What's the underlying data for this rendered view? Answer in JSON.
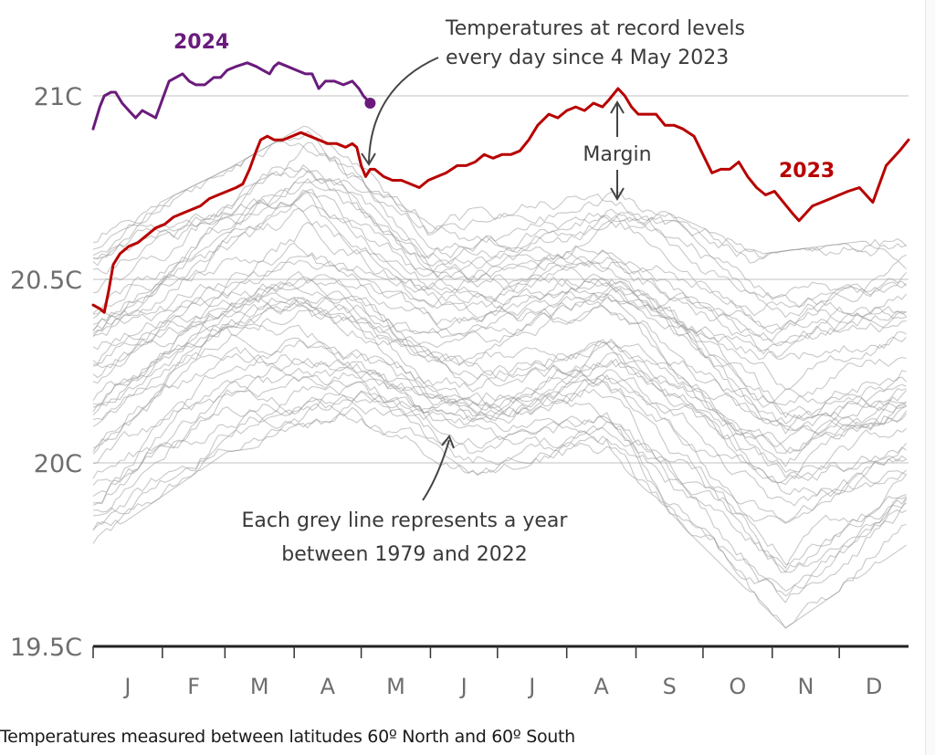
{
  "chart_data": {
    "type": "line",
    "title": "",
    "xlabel": "",
    "ylabel": "",
    "footnote": "Temperatures measured between latitudes 60º North and 60º South",
    "x_unit": "day of year",
    "xlim": [
      0,
      365
    ],
    "ylim": [
      19.5,
      21.2
    ],
    "y_ticks": [
      {
        "value": 21.0,
        "label": "21C"
      },
      {
        "value": 20.5,
        "label": "20.5C"
      },
      {
        "value": 20.0,
        "label": "20C"
      },
      {
        "value": 19.5,
        "label": "19.5C"
      }
    ],
    "x_tick_days": [
      0,
      31,
      59,
      90,
      120,
      151,
      181,
      212,
      243,
      273,
      304,
      334
    ],
    "month_labels": [
      "J",
      "F",
      "M",
      "A",
      "M",
      "J",
      "J",
      "A",
      "S",
      "O",
      "N",
      "D"
    ],
    "grid": true,
    "series": [
      {
        "name": "2023",
        "label": "2023",
        "color": "#b80000",
        "points": [
          [
            0,
            20.43
          ],
          [
            3,
            20.42
          ],
          [
            5,
            20.41
          ],
          [
            7,
            20.47
          ],
          [
            9,
            20.54
          ],
          [
            12,
            20.57
          ],
          [
            16,
            20.59
          ],
          [
            20,
            20.6
          ],
          [
            24,
            20.62
          ],
          [
            28,
            20.64
          ],
          [
            32,
            20.65
          ],
          [
            36,
            20.67
          ],
          [
            40,
            20.68
          ],
          [
            44,
            20.69
          ],
          [
            48,
            20.7
          ],
          [
            52,
            20.72
          ],
          [
            56,
            20.73
          ],
          [
            60,
            20.74
          ],
          [
            64,
            20.75
          ],
          [
            67,
            20.76
          ],
          [
            70,
            20.8
          ],
          [
            73,
            20.85
          ],
          [
            75,
            20.88
          ],
          [
            78,
            20.89
          ],
          [
            81,
            20.88
          ],
          [
            85,
            20.88
          ],
          [
            89,
            20.89
          ],
          [
            93,
            20.9
          ],
          [
            97,
            20.89
          ],
          [
            101,
            20.88
          ],
          [
            105,
            20.87
          ],
          [
            109,
            20.87
          ],
          [
            113,
            20.86
          ],
          [
            116,
            20.87
          ],
          [
            118,
            20.86
          ],
          [
            120,
            20.81
          ],
          [
            122,
            20.78
          ],
          [
            124,
            20.8
          ],
          [
            126,
            20.8
          ],
          [
            130,
            20.78
          ],
          [
            134,
            20.77
          ],
          [
            138,
            20.77
          ],
          [
            142,
            20.76
          ],
          [
            146,
            20.75
          ],
          [
            150,
            20.77
          ],
          [
            154,
            20.78
          ],
          [
            158,
            20.79
          ],
          [
            163,
            20.81
          ],
          [
            167,
            20.81
          ],
          [
            171,
            20.82
          ],
          [
            175,
            20.84
          ],
          [
            179,
            20.83
          ],
          [
            183,
            20.84
          ],
          [
            187,
            20.84
          ],
          [
            191,
            20.85
          ],
          [
            195,
            20.88
          ],
          [
            199,
            20.92
          ],
          [
            204,
            20.95
          ],
          [
            208,
            20.94
          ],
          [
            212,
            20.96
          ],
          [
            216,
            20.97
          ],
          [
            220,
            20.96
          ],
          [
            224,
            20.98
          ],
          [
            228,
            20.97
          ],
          [
            231,
            20.99
          ],
          [
            235,
            21.02
          ],
          [
            238,
            21.0
          ],
          [
            241,
            20.97
          ],
          [
            244,
            20.95
          ],
          [
            248,
            20.95
          ],
          [
            252,
            20.95
          ],
          [
            256,
            20.92
          ],
          [
            260,
            20.92
          ],
          [
            264,
            20.91
          ],
          [
            269,
            20.89
          ],
          [
            273,
            20.84
          ],
          [
            277,
            20.79
          ],
          [
            281,
            20.8
          ],
          [
            285,
            20.8
          ],
          [
            289,
            20.82
          ],
          [
            293,
            20.78
          ],
          [
            297,
            20.75
          ],
          [
            301,
            20.73
          ],
          [
            305,
            20.74
          ],
          [
            309,
            20.71
          ],
          [
            313,
            20.68
          ],
          [
            316,
            20.66
          ],
          [
            319,
            20.68
          ],
          [
            322,
            20.7
          ],
          [
            326,
            20.71
          ],
          [
            330,
            20.72
          ],
          [
            334,
            20.73
          ],
          [
            338,
            20.74
          ],
          [
            343,
            20.75
          ],
          [
            346,
            20.73
          ],
          [
            349,
            20.71
          ],
          [
            352,
            20.76
          ],
          [
            355,
            20.81
          ],
          [
            358,
            20.83
          ],
          [
            361,
            20.85
          ],
          [
            365,
            20.88
          ]
        ]
      },
      {
        "name": "2024",
        "label": "2024",
        "color": "#6a1b7c",
        "end_marker": true,
        "points": [
          [
            0,
            20.91
          ],
          [
            3,
            20.97
          ],
          [
            5,
            21.0
          ],
          [
            8,
            21.01
          ],
          [
            10,
            21.01
          ],
          [
            13,
            20.98
          ],
          [
            16,
            20.96
          ],
          [
            19,
            20.94
          ],
          [
            22,
            20.96
          ],
          [
            25,
            20.95
          ],
          [
            28,
            20.94
          ],
          [
            31,
            20.99
          ],
          [
            34,
            21.04
          ],
          [
            37,
            21.05
          ],
          [
            40,
            21.06
          ],
          [
            43,
            21.04
          ],
          [
            46,
            21.03
          ],
          [
            50,
            21.03
          ],
          [
            54,
            21.05
          ],
          [
            57,
            21.05
          ],
          [
            60,
            21.07
          ],
          [
            64,
            21.08
          ],
          [
            69,
            21.09
          ],
          [
            73,
            21.08
          ],
          [
            76,
            21.07
          ],
          [
            79,
            21.06
          ],
          [
            81,
            21.08
          ],
          [
            83,
            21.09
          ],
          [
            87,
            21.08
          ],
          [
            91,
            21.07
          ],
          [
            95,
            21.06
          ],
          [
            98,
            21.06
          ],
          [
            101,
            21.02
          ],
          [
            104,
            21.04
          ],
          [
            108,
            21.04
          ],
          [
            112,
            21.03
          ],
          [
            116,
            21.04
          ],
          [
            119,
            21.02
          ],
          [
            121,
            21.0
          ],
          [
            124,
            20.98
          ]
        ]
      }
    ],
    "background_series": {
      "name": "1979-2022",
      "color": "#9a9a9a",
      "count": 44,
      "first_year": 1979,
      "last_year": 2022,
      "envelope_upper": [
        [
          0,
          20.6
        ],
        [
          60,
          20.78
        ],
        [
          95,
          20.9
        ],
        [
          150,
          20.66
        ],
        [
          235,
          20.72
        ],
        [
          300,
          20.55
        ],
        [
          365,
          20.6
        ]
      ],
      "envelope_lower": [
        [
          0,
          19.8
        ],
        [
          60,
          20.05
        ],
        [
          120,
          20.1
        ],
        [
          170,
          19.98
        ],
        [
          230,
          20.05
        ],
        [
          280,
          19.75
        ],
        [
          310,
          19.57
        ],
        [
          365,
          19.8
        ]
      ]
    },
    "annotations": [
      {
        "id": "record",
        "lines": [
          "Temperatures at record levels",
          "every day since 4 May 2023"
        ],
        "points_to": {
          "day": 124,
          "value": 20.8
        }
      },
      {
        "id": "margin",
        "text": "Margin",
        "between": [
          20.7,
          21.02
        ],
        "day": 235
      },
      {
        "id": "grey",
        "lines": [
          "Each grey line represents a year",
          "between 1979 and 2022"
        ],
        "points_to": {
          "day": 160,
          "value": 20.07
        }
      }
    ]
  }
}
